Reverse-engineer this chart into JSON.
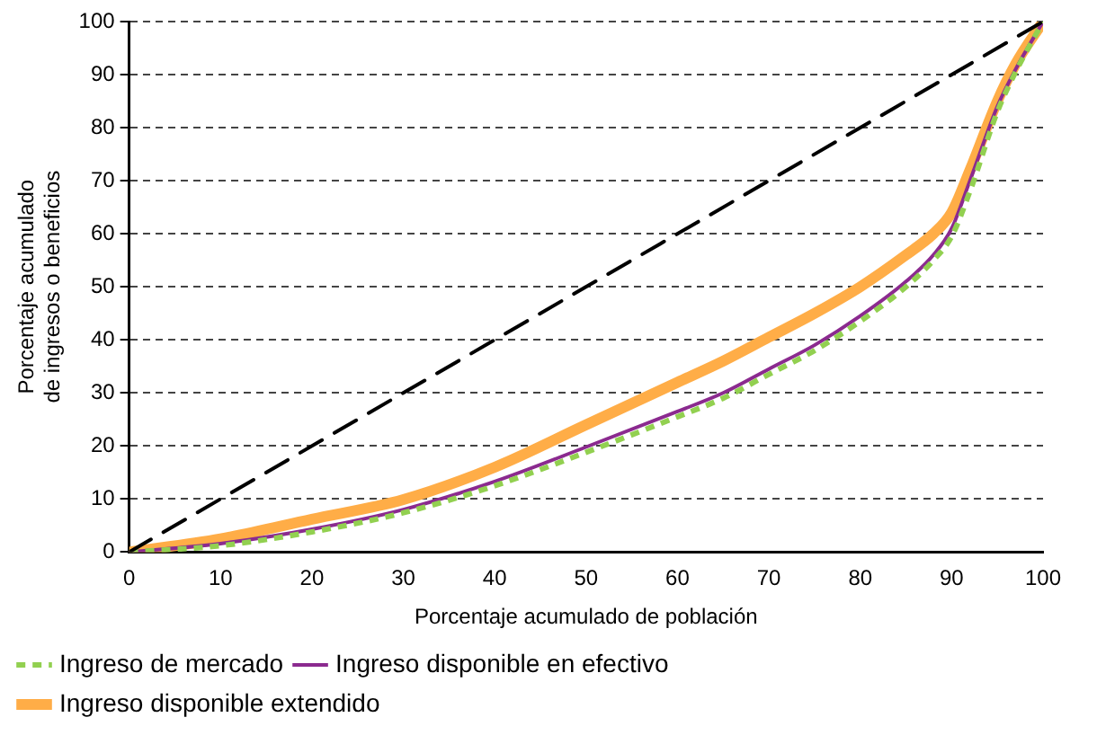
{
  "chart_data": {
    "type": "line",
    "xlabel": "Porcentaje acumulado de población",
    "ylabel": "Porcentaje acumulado\nde ingresos o beneficios",
    "xlim": [
      0,
      100
    ],
    "xticks": [
      0,
      10,
      20,
      30,
      40,
      50,
      60,
      70,
      80,
      90,
      100
    ],
    "ylim": [
      0,
      100
    ],
    "yticks": [
      0,
      10,
      20,
      30,
      40,
      50,
      60,
      70,
      80,
      90,
      100
    ],
    "grid": "y",
    "legend": "bottom",
    "marker": "none",
    "x": [
      0,
      10,
      20,
      30,
      40,
      50,
      60,
      65,
      70,
      75,
      80,
      85,
      88,
      90,
      92,
      95,
      97,
      100
    ],
    "series": [
      {
        "x": [
          0,
          100
        ],
        "values": [
          0,
          100
        ],
        "color": "#000000",
        "line_style": "dashed"
      },
      {
        "name": "Ingreso de mercado",
        "color": "#92d050",
        "line_style": "dotted",
        "values": [
          0,
          1.2,
          3.8,
          7.4,
          12.5,
          18.8,
          25.5,
          29,
          33.5,
          38,
          43.5,
          50,
          55,
          59.5,
          68,
          83,
          90.5,
          100
        ]
      },
      {
        "name": "Ingreso disponible en efectivo",
        "color": "#8b2a8f",
        "line_style": "solid",
        "values": [
          0,
          1.6,
          4.3,
          8,
          13.3,
          19.8,
          26.5,
          30,
          34.5,
          39,
          44.5,
          51,
          56,
          61,
          70,
          84,
          91,
          100
        ]
      },
      {
        "name": "Ingreso disponible extendido",
        "color": "#ffad47",
        "line_style": "solid",
        "values": [
          0,
          2.5,
          6.2,
          9.9,
          16,
          24,
          32,
          36,
          40.5,
          45,
          50,
          56,
          60,
          64,
          72,
          85,
          92,
          100
        ]
      }
    ]
  }
}
